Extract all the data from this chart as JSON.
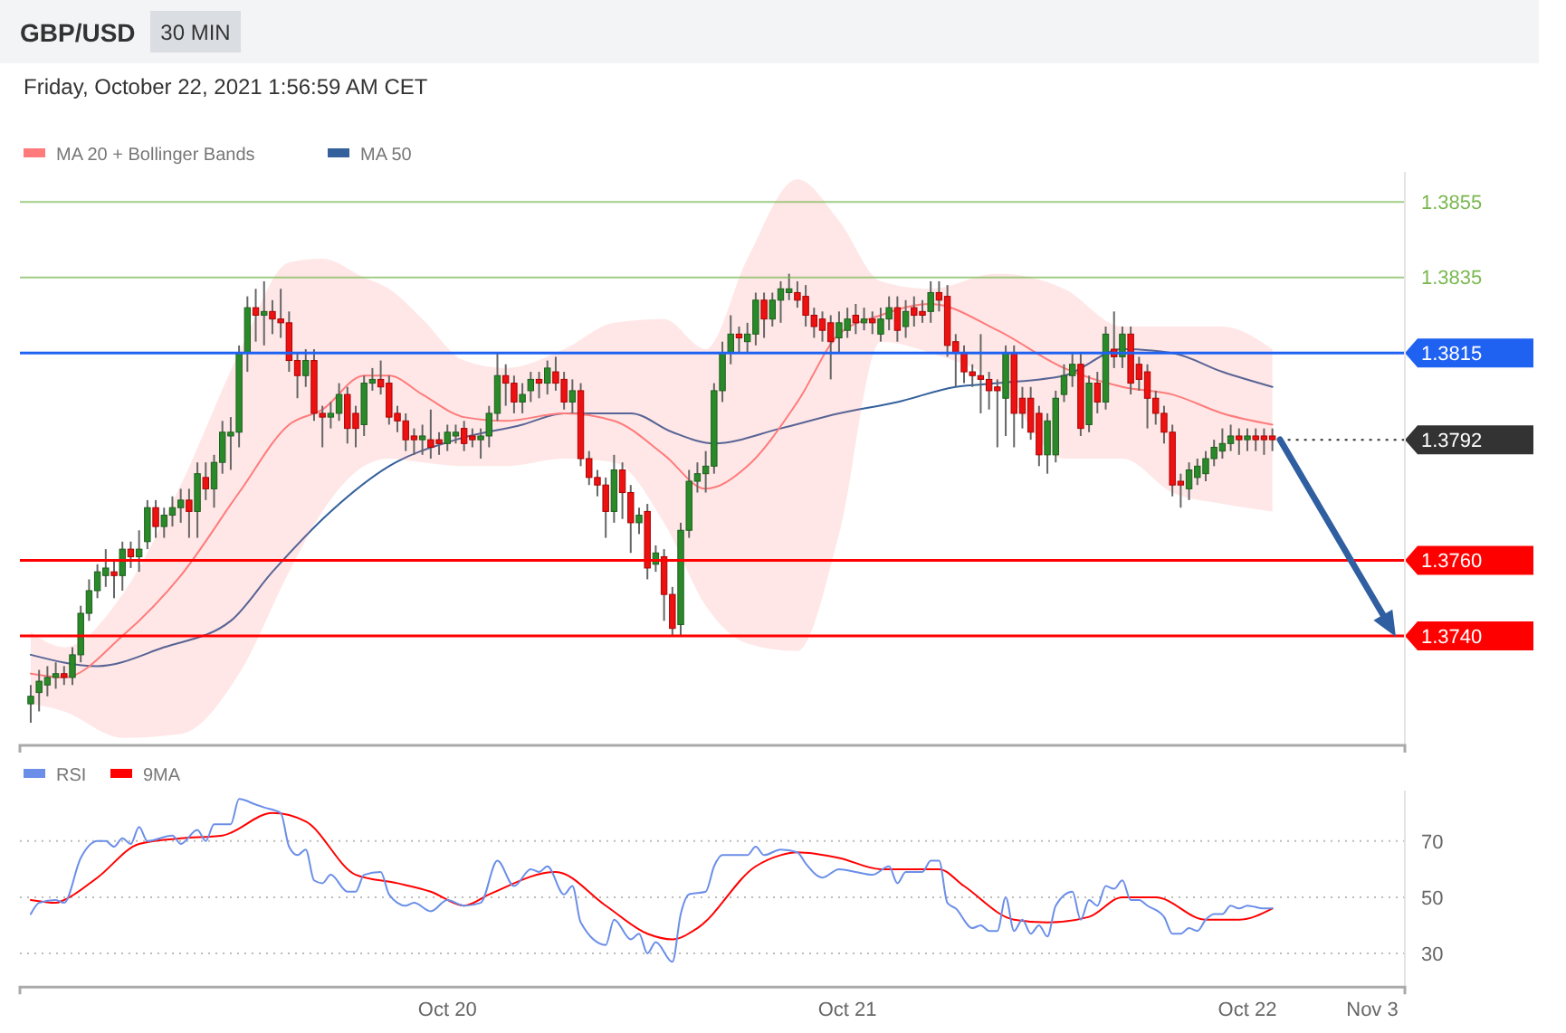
{
  "chart_data": [
    {
      "type": "candlestick",
      "title": "GBP/USD",
      "subtitle": "30 MIN",
      "annotations": [
        "Friday, October 22, 2021 1:56:59 AM CET"
      ],
      "x": [
        "2021-10-18T23:00",
        "2021-10-18T23:30",
        "2021-10-19T00:00",
        "2021-10-19T00:30",
        "2021-10-19T01:00",
        "2021-10-19T01:30",
        "2021-10-19T02:00",
        "2021-10-19T02:30",
        "2021-10-19T03:00",
        "2021-10-19T03:30",
        "2021-10-19T04:00",
        "2021-10-19T04:30",
        "2021-10-19T05:00",
        "2021-10-19T05:30",
        "2021-10-19T06:00",
        "2021-10-19T06:30",
        "2021-10-19T07:00",
        "2021-10-19T07:30",
        "2021-10-19T08:00",
        "2021-10-19T08:30",
        "2021-10-19T09:00",
        "2021-10-19T09:30",
        "2021-10-19T10:00",
        "2021-10-19T10:30",
        "2021-10-19T11:00",
        "2021-10-19T11:30",
        "2021-10-19T12:00",
        "2021-10-19T12:30",
        "2021-10-19T13:00",
        "2021-10-19T13:30",
        "2021-10-19T14:00",
        "2021-10-19T14:30",
        "2021-10-19T15:00",
        "2021-10-19T15:30",
        "2021-10-19T16:00",
        "2021-10-19T16:30",
        "2021-10-19T17:00",
        "2021-10-19T17:30",
        "2021-10-19T18:00",
        "2021-10-19T18:30",
        "2021-10-19T19:00",
        "2021-10-19T19:30",
        "2021-10-19T20:00",
        "2021-10-19T20:30",
        "2021-10-19T21:00",
        "2021-10-19T21:30",
        "2021-10-19T22:00",
        "2021-10-19T22:30",
        "2021-10-19T23:00",
        "2021-10-19T23:30",
        "2021-10-20T00:00",
        "2021-10-20T00:30",
        "2021-10-20T01:00",
        "2021-10-20T01:30",
        "2021-10-20T02:00",
        "2021-10-20T02:30",
        "2021-10-20T03:00",
        "2021-10-20T03:30",
        "2021-10-20T04:00",
        "2021-10-20T04:30",
        "2021-10-20T05:00",
        "2021-10-20T05:30",
        "2021-10-20T06:00",
        "2021-10-20T06:30",
        "2021-10-20T07:00",
        "2021-10-20T07:30",
        "2021-10-20T08:00",
        "2021-10-20T08:30",
        "2021-10-20T09:00",
        "2021-10-20T09:30",
        "2021-10-20T10:00",
        "2021-10-20T10:30",
        "2021-10-20T11:00",
        "2021-10-20T11:30",
        "2021-10-20T12:00",
        "2021-10-20T12:30",
        "2021-10-20T13:00",
        "2021-10-20T13:30",
        "2021-10-20T14:00",
        "2021-10-20T14:30",
        "2021-10-20T15:00",
        "2021-10-20T15:30",
        "2021-10-20T16:00",
        "2021-10-20T16:30",
        "2021-10-20T17:00",
        "2021-10-20T17:30",
        "2021-10-20T18:00",
        "2021-10-20T18:30",
        "2021-10-20T19:00",
        "2021-10-20T19:30",
        "2021-10-20T20:00",
        "2021-10-20T20:30",
        "2021-10-20T21:00",
        "2021-10-20T21:30",
        "2021-10-20T22:00",
        "2021-10-20T22:30",
        "2021-10-20T23:00",
        "2021-10-20T23:30",
        "2021-10-21T00:00",
        "2021-10-21T00:30",
        "2021-10-21T01:00",
        "2021-10-21T01:30",
        "2021-10-21T02:00",
        "2021-10-21T02:30",
        "2021-10-21T03:00",
        "2021-10-21T03:30",
        "2021-10-21T04:00",
        "2021-10-21T04:30",
        "2021-10-21T05:00",
        "2021-10-21T05:30",
        "2021-10-21T06:00",
        "2021-10-21T06:30",
        "2021-10-21T07:00",
        "2021-10-21T07:30",
        "2021-10-21T08:00",
        "2021-10-21T08:30",
        "2021-10-21T09:00",
        "2021-10-21T09:30",
        "2021-10-21T10:00",
        "2021-10-21T10:30",
        "2021-10-21T11:00",
        "2021-10-21T11:30",
        "2021-10-21T12:00",
        "2021-10-21T12:30",
        "2021-10-21T13:00",
        "2021-10-21T13:30",
        "2021-10-21T14:00",
        "2021-10-21T14:30",
        "2021-10-21T15:00",
        "2021-10-21T15:30",
        "2021-10-21T16:00",
        "2021-10-21T16:30",
        "2021-10-21T17:00",
        "2021-10-21T17:30",
        "2021-10-21T18:00",
        "2021-10-21T18:30",
        "2021-10-21T19:00",
        "2021-10-21T19:30",
        "2021-10-21T20:00",
        "2021-10-21T20:30",
        "2021-10-21T21:00",
        "2021-10-21T21:30",
        "2021-10-21T22:00",
        "2021-10-21T22:30",
        "2021-10-21T23:00",
        "2021-10-21T23:30",
        "2021-10-22T00:00",
        "2021-10-22T00:30",
        "2021-10-22T01:00",
        "2021-10-22T01:30"
      ],
      "ohlc": [
        [
          1.3722,
          1.3727,
          1.3717,
          1.3724
        ],
        [
          1.3725,
          1.3731,
          1.372,
          1.3728
        ],
        [
          1.3727,
          1.3732,
          1.3724,
          1.3729
        ],
        [
          1.3729,
          1.3733,
          1.3726,
          1.373
        ],
        [
          1.373,
          1.3732,
          1.3727,
          1.3729
        ],
        [
          1.3729,
          1.3737,
          1.3727,
          1.3735
        ],
        [
          1.3735,
          1.3748,
          1.3733,
          1.3746
        ],
        [
          1.3746,
          1.3755,
          1.3744,
          1.3752
        ],
        [
          1.3752,
          1.3759,
          1.375,
          1.3757
        ],
        [
          1.3756,
          1.3763,
          1.3753,
          1.3758
        ],
        [
          1.3757,
          1.376,
          1.375,
          1.3756
        ],
        [
          1.3756,
          1.3765,
          1.3752,
          1.3763
        ],
        [
          1.3763,
          1.3765,
          1.3758,
          1.3761
        ],
        [
          1.3761,
          1.3768,
          1.3757,
          1.3763
        ],
        [
          1.3765,
          1.3776,
          1.3763,
          1.3774
        ],
        [
          1.3774,
          1.3776,
          1.3766,
          1.3769
        ],
        [
          1.3769,
          1.3774,
          1.3766,
          1.3772
        ],
        [
          1.3772,
          1.3777,
          1.3769,
          1.3774
        ],
        [
          1.3774,
          1.3779,
          1.377,
          1.3776
        ],
        [
          1.3776,
          1.3779,
          1.3766,
          1.3773
        ],
        [
          1.3773,
          1.3786,
          1.3766,
          1.3783
        ],
        [
          1.3782,
          1.3786,
          1.3776,
          1.3779
        ],
        [
          1.3779,
          1.3788,
          1.3774,
          1.3786
        ],
        [
          1.3786,
          1.3797,
          1.3783,
          1.3794
        ],
        [
          1.3793,
          1.3798,
          1.3784,
          1.3794
        ],
        [
          1.3794,
          1.3817,
          1.379,
          1.3815
        ],
        [
          1.3815,
          1.383,
          1.381,
          1.3827
        ],
        [
          1.3827,
          1.3832,
          1.3818,
          1.3825
        ],
        [
          1.3825,
          1.3834,
          1.3817,
          1.3826
        ],
        [
          1.3826,
          1.3829,
          1.382,
          1.3824
        ],
        [
          1.3824,
          1.3832,
          1.3819,
          1.3823
        ],
        [
          1.3823,
          1.3826,
          1.381,
          1.3813
        ],
        [
          1.3813,
          1.3815,
          1.3803,
          1.3809
        ],
        [
          1.3809,
          1.3816,
          1.3806,
          1.3813
        ],
        [
          1.3813,
          1.3816,
          1.3797,
          1.3799
        ],
        [
          1.3799,
          1.3801,
          1.379,
          1.3798
        ],
        [
          1.3798,
          1.3802,
          1.3795,
          1.3799
        ],
        [
          1.3799,
          1.3807,
          1.3797,
          1.3804
        ],
        [
          1.3804,
          1.3806,
          1.3791,
          1.3795
        ],
        [
          1.3799,
          1.3801,
          1.379,
          1.3795
        ],
        [
          1.3796,
          1.3809,
          1.3793,
          1.3807
        ],
        [
          1.3807,
          1.3811,
          1.3805,
          1.3808
        ],
        [
          1.3808,
          1.3813,
          1.3804,
          1.3806
        ],
        [
          1.3807,
          1.3809,
          1.3796,
          1.3798
        ],
        [
          1.3799,
          1.3801,
          1.3794,
          1.3797
        ],
        [
          1.3797,
          1.3799,
          1.3789,
          1.3792
        ],
        [
          1.3793,
          1.3795,
          1.3788,
          1.3792
        ],
        [
          1.3792,
          1.3796,
          1.3788,
          1.3793
        ],
        [
          1.3792,
          1.38,
          1.3787,
          1.379
        ],
        [
          1.3792,
          1.3794,
          1.3788,
          1.3791
        ],
        [
          1.3791,
          1.3796,
          1.3789,
          1.3794
        ],
        [
          1.3793,
          1.3796,
          1.3791,
          1.3794
        ],
        [
          1.3795,
          1.3797,
          1.3789,
          1.3791
        ],
        [
          1.3793,
          1.3795,
          1.379,
          1.3792
        ],
        [
          1.3792,
          1.3795,
          1.3787,
          1.3793
        ],
        [
          1.3793,
          1.3801,
          1.379,
          1.3799
        ],
        [
          1.3799,
          1.3815,
          1.3797,
          1.3809
        ],
        [
          1.3809,
          1.3812,
          1.3801,
          1.3807
        ],
        [
          1.3807,
          1.3809,
          1.3799,
          1.3802
        ],
        [
          1.3802,
          1.3807,
          1.3799,
          1.3804
        ],
        [
          1.3805,
          1.381,
          1.3802,
          1.3808
        ],
        [
          1.3808,
          1.381,
          1.3803,
          1.3807
        ],
        [
          1.3807,
          1.3813,
          1.3804,
          1.3811
        ],
        [
          1.381,
          1.3814,
          1.3805,
          1.3807
        ],
        [
          1.3808,
          1.381,
          1.38,
          1.3802
        ],
        [
          1.3802,
          1.3808,
          1.3799,
          1.3805
        ],
        [
          1.3805,
          1.3807,
          1.3785,
          1.3787
        ],
        [
          1.3787,
          1.3789,
          1.378,
          1.3782
        ],
        [
          1.3782,
          1.3784,
          1.3777,
          1.378
        ],
        [
          1.378,
          1.3782,
          1.3766,
          1.3773
        ],
        [
          1.3773,
          1.3788,
          1.377,
          1.3784
        ],
        [
          1.3784,
          1.3786,
          1.3771,
          1.3778
        ],
        [
          1.3778,
          1.378,
          1.3762,
          1.377
        ],
        [
          1.377,
          1.3774,
          1.3767,
          1.3772
        ],
        [
          1.3773,
          1.3775,
          1.3755,
          1.3758
        ],
        [
          1.3759,
          1.3764,
          1.3757,
          1.3762
        ],
        [
          1.3761,
          1.3763,
          1.3744,
          1.3751
        ],
        [
          1.3751,
          1.3753,
          1.374,
          1.3742
        ],
        [
          1.3743,
          1.377,
          1.374,
          1.3768
        ],
        [
          1.3768,
          1.3784,
          1.3766,
          1.3781
        ],
        [
          1.3781,
          1.3786,
          1.3778,
          1.3783
        ],
        [
          1.3783,
          1.3789,
          1.3778,
          1.3785
        ],
        [
          1.3785,
          1.3807,
          1.3783,
          1.3805
        ],
        [
          1.3805,
          1.3818,
          1.3802,
          1.3815
        ],
        [
          1.3815,
          1.3825,
          1.3812,
          1.382
        ],
        [
          1.382,
          1.3822,
          1.3815,
          1.3819
        ],
        [
          1.3818,
          1.3823,
          1.3815,
          1.382
        ],
        [
          1.382,
          1.3831,
          1.3817,
          1.3829
        ],
        [
          1.3829,
          1.3831,
          1.3819,
          1.3824
        ],
        [
          1.3824,
          1.3831,
          1.3822,
          1.3829
        ],
        [
          1.3829,
          1.3834,
          1.3823,
          1.3832
        ],
        [
          1.3831,
          1.3836,
          1.3829,
          1.3832
        ],
        [
          1.3831,
          1.3834,
          1.3827,
          1.3829
        ],
        [
          1.383,
          1.3833,
          1.3822,
          1.3825
        ],
        [
          1.3825,
          1.3827,
          1.3819,
          1.3822
        ],
        [
          1.3824,
          1.3826,
          1.3818,
          1.3821
        ],
        [
          1.3823,
          1.3825,
          1.3808,
          1.3818
        ],
        [
          1.3819,
          1.3826,
          1.3815,
          1.3823
        ],
        [
          1.3821,
          1.3827,
          1.3819,
          1.3824
        ],
        [
          1.3825,
          1.3828,
          1.382,
          1.3823
        ],
        [
          1.3823,
          1.3827,
          1.3821,
          1.3824
        ],
        [
          1.3824,
          1.3826,
          1.382,
          1.3823
        ],
        [
          1.382,
          1.3827,
          1.3818,
          1.3824
        ],
        [
          1.3824,
          1.383,
          1.3821,
          1.3827
        ],
        [
          1.3827,
          1.383,
          1.3818,
          1.3821
        ],
        [
          1.3822,
          1.3829,
          1.3819,
          1.3826
        ],
        [
          1.3827,
          1.383,
          1.3822,
          1.3825
        ],
        [
          1.3826,
          1.3829,
          1.3823,
          1.3825
        ],
        [
          1.3826,
          1.3834,
          1.3823,
          1.3831
        ],
        [
          1.3831,
          1.3834,
          1.3826,
          1.3829
        ],
        [
          1.383,
          1.3833,
          1.3814,
          1.3817
        ],
        [
          1.3818,
          1.382,
          1.3806,
          1.3815
        ],
        [
          1.3815,
          1.3817,
          1.3807,
          1.381
        ],
        [
          1.381,
          1.3812,
          1.3806,
          1.3809
        ],
        [
          1.3809,
          1.382,
          1.3799,
          1.3808
        ],
        [
          1.3808,
          1.381,
          1.38,
          1.3805
        ],
        [
          1.3806,
          1.3808,
          1.379,
          1.3805
        ],
        [
          1.3803,
          1.3817,
          1.3793,
          1.3815
        ],
        [
          1.3815,
          1.3817,
          1.379,
          1.3799
        ],
        [
          1.3803,
          1.3806,
          1.3795,
          1.3799
        ],
        [
          1.3803,
          1.3806,
          1.3792,
          1.3794
        ],
        [
          1.3799,
          1.3801,
          1.3785,
          1.3788
        ],
        [
          1.3788,
          1.3799,
          1.3783,
          1.3797
        ],
        [
          1.3788,
          1.3805,
          1.3786,
          1.3803
        ],
        [
          1.3804,
          1.3812,
          1.3802,
          1.3809
        ],
        [
          1.3809,
          1.3815,
          1.3806,
          1.3812
        ],
        [
          1.3812,
          1.3815,
          1.3793,
          1.3795
        ],
        [
          1.3796,
          1.3809,
          1.3794,
          1.3807
        ],
        [
          1.3807,
          1.381,
          1.3799,
          1.3802
        ],
        [
          1.3802,
          1.3822,
          1.38,
          1.382
        ],
        [
          1.3816,
          1.3826,
          1.3811,
          1.3814
        ],
        [
          1.3814,
          1.3822,
          1.3811,
          1.382
        ],
        [
          1.382,
          1.3822,
          1.3804,
          1.3807
        ],
        [
          1.3812,
          1.3814,
          1.3805,
          1.3808
        ],
        [
          1.381,
          1.3812,
          1.3795,
          1.3803
        ],
        [
          1.3803,
          1.3805,
          1.3796,
          1.3799
        ],
        [
          1.3799,
          1.3801,
          1.3791,
          1.3794
        ],
        [
          1.3794,
          1.3796,
          1.3777,
          1.378
        ],
        [
          1.3781,
          1.3783,
          1.3774,
          1.378
        ],
        [
          1.3779,
          1.3786,
          1.3776,
          1.3784
        ],
        [
          1.3782,
          1.3787,
          1.378,
          1.3785
        ],
        [
          1.3783,
          1.3789,
          1.3781,
          1.3787
        ],
        [
          1.3787,
          1.3792,
          1.3785,
          1.379
        ],
        [
          1.3789,
          1.3795,
          1.3787,
          1.3791
        ],
        [
          1.3791,
          1.3796,
          1.3789,
          1.3793
        ],
        [
          1.3793,
          1.3795,
          1.3788,
          1.3792
        ],
        [
          1.3792,
          1.3795,
          1.3789,
          1.3793
        ],
        [
          1.3793,
          1.3795,
          1.3789,
          1.3792
        ],
        [
          1.3793,
          1.3795,
          1.3788,
          1.3792
        ],
        [
          1.3793,
          1.3795,
          1.3789,
          1.3792
        ]
      ],
      "series": [
        {
          "name": "MA 20 + Bollinger Bands",
          "type": "line",
          "color": "#ff7b7b",
          "x": [
            "2021-10-18T23:00",
            "2021-10-19T01:00",
            "2021-10-19T04:30",
            "2021-10-19T08:00",
            "2021-10-19T11:30",
            "2021-10-19T14:30",
            "2021-10-19T16:30",
            "2021-10-19T19:00",
            "2021-10-19T20:30",
            "2021-10-19T22:30",
            "2021-10-20T01:00",
            "2021-10-20T03:30",
            "2021-10-20T07:00",
            "2021-10-20T10:00",
            "2021-10-20T13:00",
            "2021-10-20T15:30",
            "2021-10-20T18:00",
            "2021-10-20T21:00",
            "2021-10-20T23:30",
            "2021-10-21T02:00",
            "2021-10-21T05:00",
            "2021-10-21T09:00",
            "2021-10-21T13:00",
            "2021-10-21T16:30",
            "2021-10-21T19:30",
            "2021-10-21T22:30",
            "2021-10-22T01:30"
          ],
          "values": [
            1.373,
            1.3729,
            1.374,
            1.3756,
            1.3778,
            1.3796,
            1.38,
            1.3809,
            1.3809,
            1.3804,
            1.3798,
            1.3797,
            1.3799,
            1.3797,
            1.3788,
            1.3779,
            1.3785,
            1.3802,
            1.382,
            1.3825,
            1.3828,
            1.3821,
            1.3811,
            1.3806,
            1.3804,
            1.3799,
            1.3796
          ],
          "upper": [
            1.3741,
            1.3737,
            1.3751,
            1.378,
            1.3815,
            1.3839,
            1.384,
            1.3835,
            1.3832,
            1.3824,
            1.3813,
            1.3811,
            1.3816,
            1.3823,
            1.3824,
            1.3816,
            1.384,
            1.3861,
            1.385,
            1.3834,
            1.3832,
            1.3836,
            1.3832,
            1.3822,
            1.3822,
            1.3822,
            1.3816
          ],
          "lower": [
            1.3722,
            1.372,
            1.3713,
            1.3714,
            1.373,
            1.3757,
            1.3773,
            1.3785,
            1.3787,
            1.3786,
            1.3785,
            1.3785,
            1.3787,
            1.3786,
            1.377,
            1.3748,
            1.3738,
            1.3736,
            1.3767,
            1.3818,
            1.3815,
            1.3807,
            1.3787,
            1.3787,
            1.3778,
            1.3775,
            1.3773
          ]
        },
        {
          "name": "MA 50",
          "type": "line",
          "color": "#34609c",
          "x": [
            "2021-10-18T23:00",
            "2021-10-19T03:00",
            "2021-10-19T07:00",
            "2021-10-19T11:00",
            "2021-10-19T13:30",
            "2021-10-19T17:00",
            "2021-10-19T20:30",
            "2021-10-20T00:30",
            "2021-10-20T04:30",
            "2021-10-20T07:00",
            "2021-10-20T11:00",
            "2021-10-20T13:30",
            "2021-10-20T16:00",
            "2021-10-20T20:00",
            "2021-10-20T23:30",
            "2021-10-21T03:00",
            "2021-10-21T06:30",
            "2021-10-21T09:00",
            "2021-10-21T13:00",
            "2021-10-21T16:30",
            "2021-10-21T19:30",
            "2021-10-21T22:30",
            "2021-10-22T01:30"
          ],
          "values": [
            1.3735,
            1.3732,
            1.3737,
            1.3744,
            1.3757,
            1.3773,
            1.3785,
            1.3792,
            1.3796,
            1.3799,
            1.3799,
            1.3794,
            1.3791,
            1.3795,
            1.3799,
            1.3802,
            1.3806,
            1.3807,
            1.3809,
            1.3816,
            1.3815,
            1.381,
            1.3806
          ]
        }
      ],
      "xlim": [
        "2021-10-18T22:21",
        "2021-10-22T09:27"
      ],
      "ylim": [
        1.3711,
        1.3863
      ],
      "yticks": [
        1.3855,
        1.3835,
        1.3815,
        1.3792,
        {
          "value": 1.376,
          "label": "1.3760"
        },
        {
          "value": 1.374,
          "label": "1.3740"
        }
      ],
      "ref_lines": [
        {
          "axis": "y",
          "value": 1.3855,
          "color": "#7ab850"
        },
        {
          "axis": "y",
          "value": 1.3835,
          "color": "#7ab850"
        },
        {
          "axis": "y",
          "value": 1.3815,
          "color": "#1f62f2"
        },
        {
          "axis": "y",
          "value": 1.3792,
          "color": "#333333",
          "line_style": "dotted"
        },
        {
          "axis": "y",
          "value": 1.376,
          "color": "#ff0000"
        },
        {
          "axis": "y",
          "value": 1.374,
          "color": "#ff0000"
        }
      ],
      "legend": "top left"
    },
    {
      "type": "line",
      "series": [
        {
          "name": "RSI",
          "color": "#6b8ee8",
          "x": [
            "2021-10-18T23:00",
            "2021-10-18T23:30",
            "2021-10-19T00:30",
            "2021-10-19T01:00",
            "2021-10-19T02:00",
            "2021-10-19T03:00",
            "2021-10-19T03:30",
            "2021-10-19T04:00",
            "2021-10-19T04:30",
            "2021-10-19T05:00",
            "2021-10-19T05:30",
            "2021-10-19T06:00",
            "2021-10-19T07:30",
            "2021-10-19T08:00",
            "2021-10-19T09:00",
            "2021-10-19T09:30",
            "2021-10-19T10:00",
            "2021-10-19T11:00",
            "2021-10-19T11:30",
            "2021-10-19T12:30",
            "2021-10-19T13:00",
            "2021-10-19T14:00",
            "2021-10-19T14:30",
            "2021-10-19T15:00",
            "2021-10-19T15:30",
            "2021-10-19T16:00",
            "2021-10-19T16:30",
            "2021-10-19T17:00",
            "2021-10-19T18:00",
            "2021-10-19T18:30",
            "2021-10-19T19:00",
            "2021-10-19T20:00",
            "2021-10-19T20:30",
            "2021-10-19T21:30",
            "2021-10-19T22:00",
            "2021-10-19T23:00",
            "2021-10-20T00:00",
            "2021-10-20T01:00",
            "2021-10-20T02:00",
            "2021-10-20T03:00",
            "2021-10-20T04:00",
            "2021-10-20T05:00",
            "2021-10-20T05:30",
            "2021-10-20T06:00",
            "2021-10-20T07:00",
            "2021-10-20T07:30",
            "2021-10-20T08:00",
            "2021-10-20T09:30",
            "2021-10-20T10:00",
            "2021-10-20T11:00",
            "2021-10-20T11:30",
            "2021-10-20T12:00",
            "2021-10-20T12:30",
            "2021-10-20T13:30",
            "2021-10-20T14:00",
            "2021-10-20T14:30",
            "2021-10-20T15:30",
            "2021-10-20T16:00",
            "2021-10-20T16:30",
            "2021-10-20T17:30",
            "2021-10-20T18:00",
            "2021-10-20T18:30",
            "2021-10-20T19:00",
            "2021-10-20T20:00",
            "2021-10-20T21:00",
            "2021-10-20T21:30",
            "2021-10-20T22:30",
            "2021-10-20T23:30",
            "2021-10-21T00:30",
            "2021-10-21T01:30",
            "2021-10-21T02:30",
            "2021-10-21T03:00",
            "2021-10-21T03:30",
            "2021-10-21T04:30",
            "2021-10-21T05:00",
            "2021-10-21T05:30",
            "2021-10-21T06:00",
            "2021-10-21T06:30",
            "2021-10-21T07:30",
            "2021-10-21T08:00",
            "2021-10-21T08:30",
            "2021-10-21T09:00",
            "2021-10-21T09:30",
            "2021-10-21T10:00",
            "2021-10-21T10:30",
            "2021-10-21T11:00",
            "2021-10-21T11:30",
            "2021-10-21T12:00",
            "2021-10-21T12:30",
            "2021-10-21T13:30",
            "2021-10-21T14:00",
            "2021-10-21T14:30",
            "2021-10-21T15:00",
            "2021-10-21T15:30",
            "2021-10-21T16:00",
            "2021-10-21T16:30",
            "2021-10-21T17:00",
            "2021-10-21T17:30",
            "2021-10-21T18:00",
            "2021-10-21T19:00",
            "2021-10-21T19:30",
            "2021-10-21T20:00",
            "2021-10-21T20:30",
            "2021-10-21T21:00",
            "2021-10-21T21:30",
            "2021-10-21T22:00",
            "2021-10-21T22:30",
            "2021-10-21T23:00",
            "2021-10-21T23:30",
            "2021-10-22T00:00",
            "2021-10-22T01:00",
            "2021-10-22T01:30"
          ],
          "values": [
            44,
            48,
            49,
            48,
            64,
            70,
            70,
            68,
            71,
            69,
            75,
            70,
            72,
            69,
            74,
            70,
            76,
            76,
            85,
            83,
            82,
            80,
            68,
            65,
            67,
            56,
            55,
            58,
            52,
            52,
            58,
            59,
            51,
            47,
            48,
            45,
            49,
            47,
            48,
            63,
            54,
            60,
            59,
            61,
            51,
            54,
            41,
            33,
            42,
            35,
            37,
            30,
            34,
            27,
            44,
            51,
            52,
            61,
            65,
            65,
            65,
            68,
            65,
            67,
            66,
            62,
            57,
            60,
            59,
            58,
            61,
            55,
            59,
            59,
            63,
            63,
            48,
            46,
            39,
            40,
            38,
            38,
            50,
            38,
            42,
            37,
            40,
            36,
            47,
            52,
            42,
            49,
            47,
            54,
            53,
            56,
            49,
            49,
            47,
            43,
            37,
            37,
            39,
            38,
            42,
            44,
            44,
            47,
            46,
            47,
            46,
            46
          ]
        },
        {
          "name": "9MA",
          "color": "#ff0000",
          "x": [
            "2021-10-18T23:00",
            "2021-10-19T00:30",
            "2021-10-19T01:00",
            "2021-10-19T03:00",
            "2021-10-19T05:30",
            "2021-10-19T08:00",
            "2021-10-19T10:30",
            "2021-10-19T13:30",
            "2021-10-19T15:30",
            "2021-10-19T18:30",
            "2021-10-19T21:00",
            "2021-10-19T23:00",
            "2021-10-20T01:00",
            "2021-10-20T02:30",
            "2021-10-20T06:30",
            "2021-10-20T09:30",
            "2021-10-20T12:00",
            "2021-10-20T13:30",
            "2021-10-20T15:00",
            "2021-10-20T18:30",
            "2021-10-20T20:00",
            "2021-10-20T21:00",
            "2021-10-20T23:30",
            "2021-10-21T02:00",
            "2021-10-21T05:30",
            "2021-10-21T07:00",
            "2021-10-21T10:00",
            "2021-10-21T12:00",
            "2021-10-21T14:30",
            "2021-10-21T16:30",
            "2021-10-21T18:30",
            "2021-10-21T21:30",
            "2021-10-21T23:30",
            "2021-10-22T01:30"
          ],
          "values": [
            49,
            48,
            49,
            57,
            69,
            71,
            72,
            80,
            77,
            58,
            55,
            52,
            47,
            51,
            59,
            47,
            37,
            35,
            39,
            61,
            65,
            66,
            64,
            60,
            60,
            54,
            42,
            41,
            43,
            50,
            50,
            42,
            42,
            46
          ]
        }
      ],
      "annotations": [
        "Nov 3"
      ],
      "xlim": [
        "2021-10-18T22:21",
        "2021-10-22T09:27"
      ],
      "ylim": [
        18,
        88
      ],
      "yticks": [
        30,
        50,
        70
      ],
      "xticks": [
        {
          "value": "2021-10-20",
          "label": "Oct 20"
        },
        {
          "value": "2021-10-21",
          "label": "Oct 21"
        },
        {
          "value": "2021-10-22",
          "label": "Oct 22"
        }
      ],
      "grid": "y",
      "legend": "top left"
    }
  ]
}
